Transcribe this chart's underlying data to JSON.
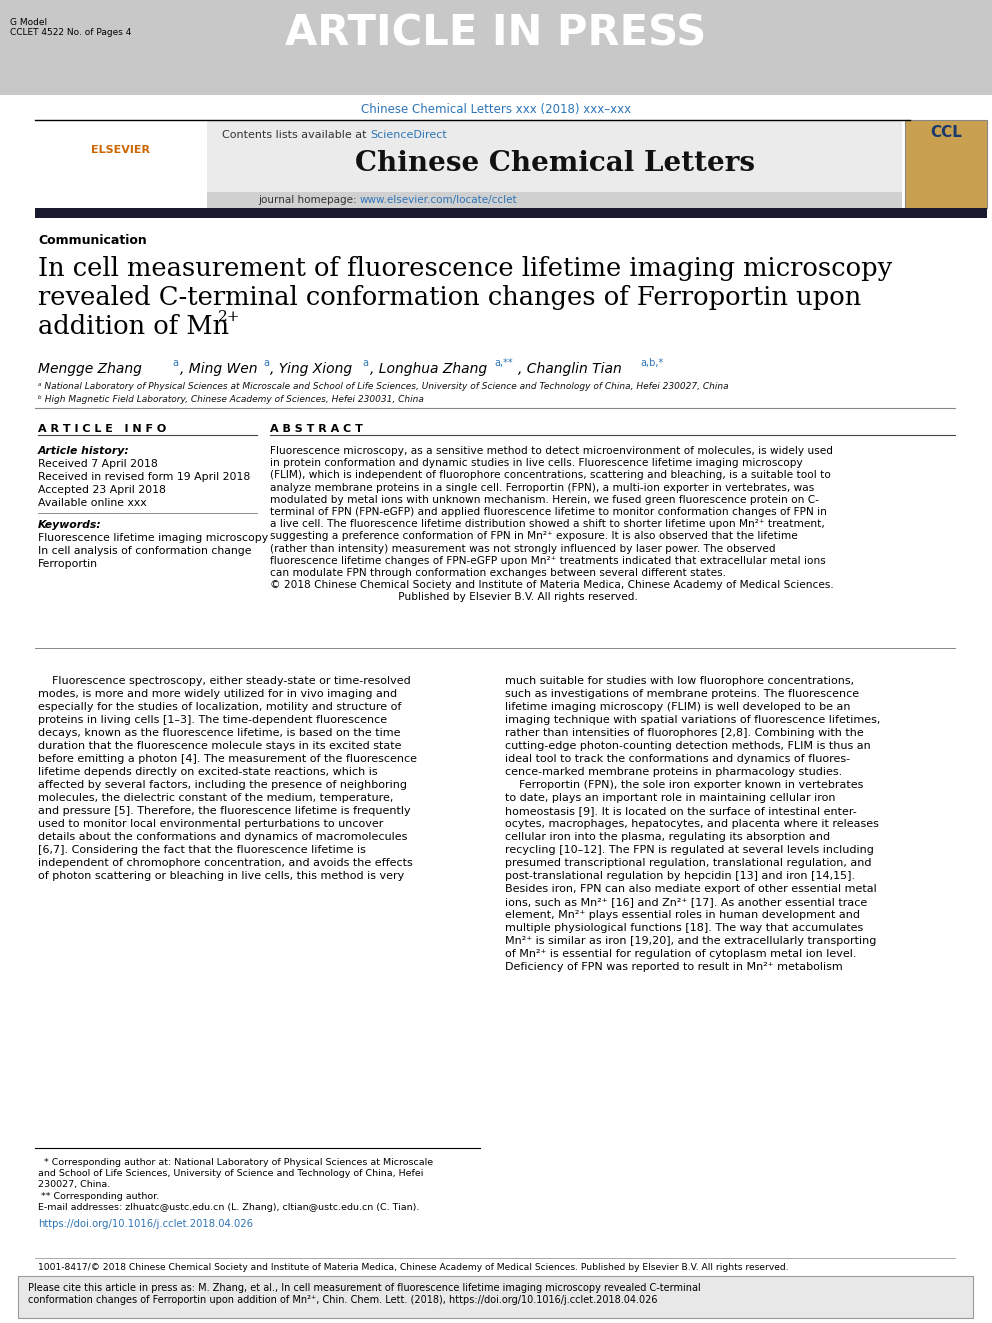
{
  "page_width": 9.92,
  "page_height": 13.23,
  "bg_color": "#ffffff",
  "header_bg": "#c8c8c8",
  "header_text": "ARTICLE IN PRESS",
  "header_text_color": "#ffffff",
  "gmodel_line1": "G Model",
  "gmodel_line2": "CCLET 4522 No. of Pages 4",
  "journal_ref_color": "#2e75b6",
  "journal_ref": "Chinese Chemical Letters xxx (2018) xxx–xxx",
  "sciencedirect_color": "#2e75b6",
  "journal_name": "Chinese Chemical Letters",
  "journal_url": "www.elsevier.com/locate/cclet",
  "journal_url_color": "#2e75b6",
  "section_label": "Communication",
  "title_line1": "In cell measurement of fluorescence lifetime imaging microscopy",
  "title_line2": "revealed C-terminal conformation changes of Ferroportin upon",
  "title_line3": "addition of Mn",
  "title_superscript": "2+",
  "affil_a": "ᵃ National Laboratory of Physical Sciences at Microscale and School of Life Sciences, University of Science and Technology of China, Hefei 230027, China",
  "affil_b": "ᵇ High Magnetic Field Laboratory, Chinese Academy of Sciences, Hefei 230031, China",
  "article_info_title": "ARTICLE  INFO",
  "abstract_title": "ABSTRACT",
  "article_history_title": "Article history:",
  "received": "Received 7 April 2018",
  "revised": "Received in revised form 19 April 2018",
  "accepted": "Accepted 23 April 2018",
  "available": "Available online xxx",
  "keywords_title": "Keywords:",
  "kw1": "Fluorescence lifetime imaging microscopy",
  "kw2": "In cell analysis of conformation change",
  "kw3": "Ferroportin",
  "doi_text": "https://doi.org/10.1016/j.cclet.2018.04.026",
  "doi_color": "#2e75b6",
  "issn_text": "1001-8417/© 2018 Chinese Chemical Society and Institute of Materia Medica, Chinese Academy of Medical Sciences. Published by Elsevier B.V. All rights reserved.",
  "cite_box_bg": "#e8e8e8"
}
